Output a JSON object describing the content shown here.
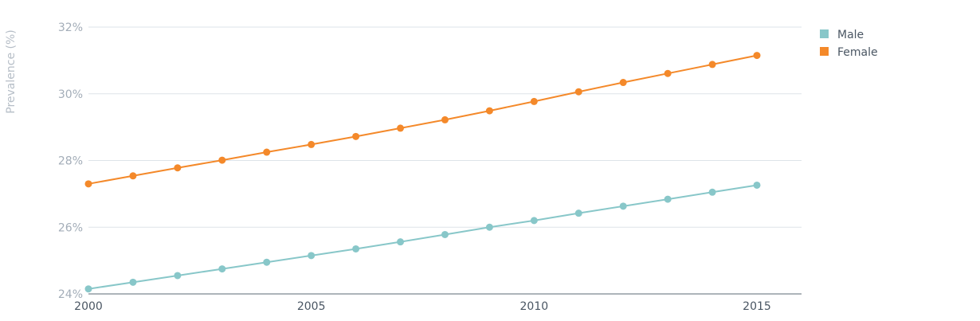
{
  "chart_data": {
    "type": "line",
    "ylabel": "Prevalence (%)",
    "xlabel": "",
    "x": [
      2000,
      2001,
      2002,
      2003,
      2004,
      2005,
      2006,
      2007,
      2008,
      2009,
      2010,
      2011,
      2012,
      2013,
      2014,
      2015
    ],
    "x_ticks": [
      2000,
      2005,
      2010,
      2015
    ],
    "y_ticks": [
      24,
      26,
      28,
      30,
      32
    ],
    "y_tick_labels": [
      "24%",
      "26%",
      "28%",
      "30%",
      "32%"
    ],
    "ylim": [
      24,
      32
    ],
    "xlim": [
      2000,
      2016
    ],
    "grid": true,
    "legend_position": "top-right",
    "series": [
      {
        "name": "Male",
        "color": "#88c7c9",
        "values": [
          24.15,
          24.35,
          24.55,
          24.75,
          24.95,
          25.15,
          25.35,
          25.56,
          25.78,
          26.0,
          26.2,
          26.42,
          26.63,
          26.84,
          27.05,
          27.26
        ]
      },
      {
        "name": "Female",
        "color": "#f4892a",
        "values": [
          27.3,
          27.54,
          27.78,
          28.01,
          28.25,
          28.48,
          28.72,
          28.97,
          29.22,
          29.49,
          29.77,
          30.06,
          30.34,
          30.61,
          30.88,
          31.15
        ]
      }
    ]
  }
}
